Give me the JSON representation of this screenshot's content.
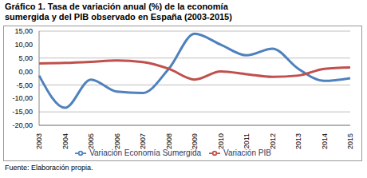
{
  "chart_data": {
    "type": "line",
    "title": "Gráfico 1. Tasa de variación anual (%) de la economía sumergida y del PIB observado en España (2003-2015)",
    "source": "Fuente: Elaboración propia.",
    "categories": [
      "2003",
      "2004",
      "2005",
      "2006",
      "2007",
      "2008",
      "2009",
      "2010",
      "2011",
      "2012",
      "2013",
      "2014",
      "2015"
    ],
    "series": [
      {
        "name": "Variación Economía Sumergida",
        "color": "#4f81bd",
        "values": [
          -1.5,
          -13.5,
          -3,
          -7.5,
          -8,
          1,
          14,
          10,
          6,
          8.5,
          1,
          -3.5,
          -2.5
        ]
      },
      {
        "name": "Variación PIB",
        "color": "#c0504d",
        "values": [
          3.0,
          3.2,
          3.6,
          4.1,
          3.5,
          1.0,
          -3.0,
          0.0,
          -1.0,
          -2.0,
          -1.5,
          1.0,
          1.5
        ]
      }
    ],
    "ylim": [
      -20,
      15
    ],
    "yticks": [
      {
        "value": -20,
        "label": "-20,00"
      },
      {
        "value": -15,
        "label": "-15,00"
      },
      {
        "value": -10,
        "label": "-10,00"
      },
      {
        "value": -5,
        "label": "-5,00"
      },
      {
        "value": 0,
        "label": "0,00"
      },
      {
        "value": 5,
        "label": "5,00"
      },
      {
        "value": 10,
        "label": "10,00"
      },
      {
        "value": 15,
        "label": "15,00"
      }
    ],
    "grid": true,
    "legend": "bottom"
  }
}
